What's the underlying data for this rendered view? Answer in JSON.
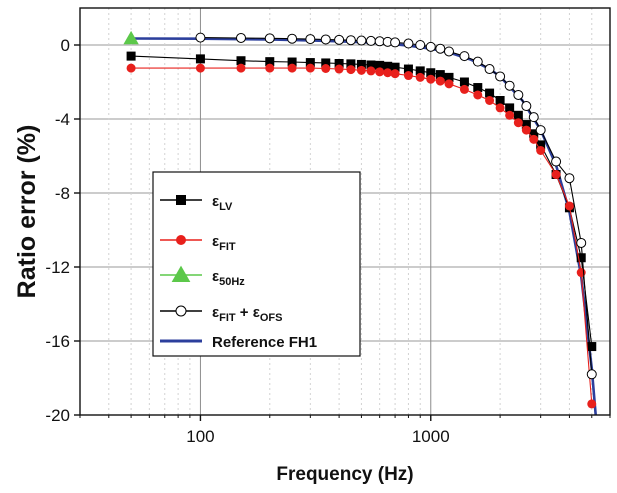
{
  "chart_data": {
    "type": "line",
    "title": "",
    "xlabel": "Frequency (Hz)",
    "ylabel": "Ratio error (%)",
    "xscale": "log",
    "xlim": [
      30,
      6000
    ],
    "ylim": [
      -20,
      2
    ],
    "x_ticks": [
      100,
      1000
    ],
    "x_tick_labels": [
      "100",
      "1000"
    ],
    "y_ticks": [
      0,
      -4,
      -8,
      -12,
      -16,
      -20
    ],
    "y_tick_labels": [
      "0",
      "-4",
      "-8",
      "-12",
      "-16",
      "-20"
    ],
    "grid": true,
    "legend_position": "center-left",
    "series": [
      {
        "name": "εLV",
        "label_main": "ε",
        "label_sub": "LV",
        "marker": "square",
        "color": "#000000",
        "x": [
          50,
          100,
          150,
          200,
          250,
          300,
          350,
          400,
          450,
          500,
          550,
          600,
          650,
          700,
          800,
          900,
          1000,
          1100,
          1200,
          1400,
          1600,
          1800,
          2000,
          2200,
          2400,
          2600,
          2800,
          3000,
          3500,
          4000,
          4500,
          5000
        ],
        "y": [
          -0.6,
          -0.75,
          -0.85,
          -0.9,
          -0.92,
          -0.95,
          -0.97,
          -1.0,
          -1.02,
          -1.05,
          -1.08,
          -1.1,
          -1.15,
          -1.2,
          -1.3,
          -1.4,
          -1.5,
          -1.6,
          -1.75,
          -2.0,
          -2.3,
          -2.6,
          -3.0,
          -3.4,
          -3.8,
          -4.3,
          -4.8,
          -5.4,
          -7.0,
          -8.8,
          -11.5,
          -16.3
        ]
      },
      {
        "name": "εFIT",
        "label_main": "ε",
        "label_sub": "FIT",
        "marker": "circle-filled",
        "color": "#e8201c",
        "x": [
          50,
          100,
          150,
          200,
          250,
          300,
          350,
          400,
          450,
          500,
          550,
          600,
          650,
          700,
          800,
          900,
          1000,
          1100,
          1200,
          1400,
          1600,
          1800,
          2000,
          2200,
          2400,
          2600,
          2800,
          3000,
          3500,
          4000,
          4500,
          5000
        ],
        "y": [
          -1.25,
          -1.25,
          -1.25,
          -1.25,
          -1.25,
          -1.25,
          -1.27,
          -1.3,
          -1.33,
          -1.37,
          -1.4,
          -1.45,
          -1.5,
          -1.55,
          -1.65,
          -1.75,
          -1.85,
          -1.95,
          -2.1,
          -2.4,
          -2.7,
          -3.0,
          -3.4,
          -3.8,
          -4.2,
          -4.6,
          -5.1,
          -5.7,
          -7.0,
          -8.7,
          -12.3,
          -19.4
        ]
      },
      {
        "name": "ε50Hz",
        "label_main": "ε",
        "label_sub": "50Hz",
        "marker": "triangle",
        "color": "#5cc84a",
        "x": [
          50
        ],
        "y": [
          0.35
        ]
      },
      {
        "name": "εFIT + εOFS",
        "label_main": "ε",
        "label_sub": "FIT",
        "label_mid": " + ε",
        "label_sub2": "OFS",
        "marker": "circle-open",
        "color": "#000000",
        "x": [
          100,
          150,
          200,
          250,
          300,
          350,
          400,
          450,
          500,
          550,
          600,
          650,
          700,
          800,
          900,
          1000,
          1100,
          1200,
          1400,
          1600,
          1800,
          2000,
          2200,
          2400,
          2600,
          2800,
          3000,
          3500,
          4000,
          4500,
          5000
        ],
        "y": [
          0.4,
          0.38,
          0.36,
          0.34,
          0.32,
          0.3,
          0.28,
          0.26,
          0.24,
          0.22,
          0.2,
          0.17,
          0.14,
          0.08,
          0.0,
          -0.1,
          -0.2,
          -0.35,
          -0.6,
          -0.9,
          -1.3,
          -1.7,
          -2.2,
          -2.7,
          -3.3,
          -3.9,
          -4.6,
          -6.3,
          -7.2,
          -10.7,
          -17.8
        ]
      },
      {
        "name": "Reference FH1",
        "label_main": "Reference FH1",
        "marker": "none",
        "color": "#2c3f9c",
        "x": [
          50,
          100,
          200,
          300,
          400,
          500,
          600,
          700,
          800,
          1000,
          1200,
          1500,
          1800,
          2000,
          2500,
          3000,
          3500,
          4000,
          4500,
          5000,
          5200
        ],
        "y": [
          0.35,
          0.34,
          0.3,
          0.25,
          0.2,
          0.15,
          0.1,
          0.04,
          -0.03,
          -0.2,
          -0.4,
          -0.8,
          -1.3,
          -1.7,
          -3.0,
          -4.6,
          -6.5,
          -9.0,
          -12.5,
          -17.5,
          -20.0
        ]
      }
    ]
  }
}
